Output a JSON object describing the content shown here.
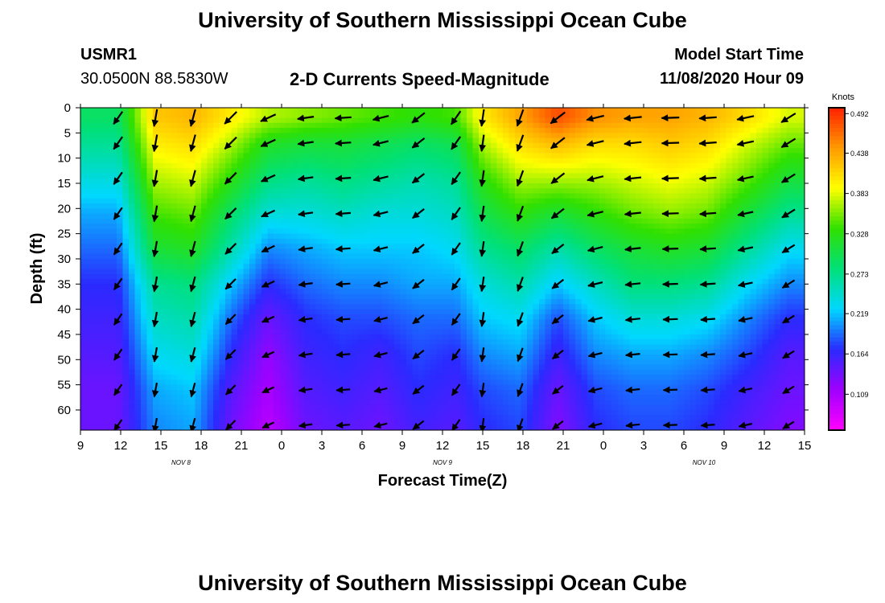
{
  "header": {
    "title_top": "University of Southern Mississippi Ocean Cube",
    "title_bottom": "University of Southern Mississippi Ocean Cube",
    "station_id": "USMR1",
    "station_location": "30.0500N 88.5830W",
    "plot_title": "2-D Currents Speed-Magnitude",
    "model_start_label": "Model Start Time",
    "model_start_value": "11/08/2020 Hour 09"
  },
  "chart_data": {
    "type": "heatmap",
    "title": "2-D Currents Speed-Magnitude",
    "xlabel": "Forecast Time(Z)",
    "ylabel": "Depth (ft)",
    "x_ticks": [
      "9",
      "12",
      "15",
      "18",
      "21",
      "0",
      "3",
      "6",
      "9",
      "12",
      "15",
      "18",
      "21",
      "0",
      "3",
      "6",
      "9",
      "12",
      "15"
    ],
    "x_range_hours": [
      0,
      54
    ],
    "date_labels": [
      {
        "text": "NOV  8",
        "hour": 7.5
      },
      {
        "text": "NOV  9",
        "hour": 27
      },
      {
        "text": "NOV  10",
        "hour": 46.5
      }
    ],
    "y_ticks": [
      0,
      5,
      10,
      15,
      20,
      25,
      30,
      35,
      40,
      45,
      50,
      55,
      60
    ],
    "ylim": [
      0,
      64
    ],
    "colorbar": {
      "unit": "Knots",
      "ticks": [
        "0.492",
        "0.438",
        "0.383",
        "0.328",
        "0.273",
        "0.219",
        "0.164",
        "0.109"
      ],
      "range": [
        0.06,
        0.5
      ],
      "colors": [
        "#ff00ff",
        "#a000ff",
        "#2a2aff",
        "#00d8ff",
        "#00e07a",
        "#30e000",
        "#ffff00",
        "#ff9a00",
        "#ff2000"
      ]
    },
    "vector_depths": [
      2,
      7,
      14,
      21,
      28,
      35,
      42,
      49,
      56,
      63
    ],
    "vector_columns": [
      {
        "hour": 2.8,
        "dir_deg": 215,
        "speed": [
          0.29,
          0.27,
          0.24,
          0.21,
          0.19,
          0.17,
          0.16,
          0.15,
          0.14,
          0.14
        ]
      },
      {
        "hour": 5.6,
        "dir_deg": 190,
        "speed": [
          0.42,
          0.4,
          0.37,
          0.34,
          0.31,
          0.27,
          0.25,
          0.23,
          0.21,
          0.2
        ]
      },
      {
        "hour": 8.4,
        "dir_deg": 195,
        "speed": [
          0.43,
          0.41,
          0.38,
          0.35,
          0.32,
          0.28,
          0.26,
          0.24,
          0.22,
          0.21
        ]
      },
      {
        "hour": 11.2,
        "dir_deg": 225,
        "speed": [
          0.4,
          0.37,
          0.33,
          0.29,
          0.26,
          0.22,
          0.19,
          0.17,
          0.15,
          0.14
        ]
      },
      {
        "hour": 14.0,
        "dir_deg": 245,
        "speed": [
          0.37,
          0.32,
          0.28,
          0.24,
          0.2,
          0.17,
          0.14,
          0.12,
          0.11,
          0.1
        ]
      },
      {
        "hour": 16.8,
        "dir_deg": 262,
        "speed": [
          0.36,
          0.31,
          0.27,
          0.24,
          0.21,
          0.19,
          0.17,
          0.16,
          0.15,
          0.14
        ]
      },
      {
        "hour": 19.6,
        "dir_deg": 266,
        "speed": [
          0.35,
          0.31,
          0.28,
          0.25,
          0.22,
          0.2,
          0.18,
          0.17,
          0.16,
          0.15
        ]
      },
      {
        "hour": 22.4,
        "dir_deg": 256,
        "speed": [
          0.34,
          0.3,
          0.27,
          0.24,
          0.22,
          0.2,
          0.18,
          0.16,
          0.15,
          0.14
        ]
      },
      {
        "hour": 25.2,
        "dir_deg": 232,
        "speed": [
          0.33,
          0.29,
          0.26,
          0.24,
          0.22,
          0.21,
          0.19,
          0.18,
          0.17,
          0.16
        ]
      },
      {
        "hour": 28.0,
        "dir_deg": 215,
        "speed": [
          0.34,
          0.3,
          0.27,
          0.25,
          0.23,
          0.21,
          0.19,
          0.17,
          0.16,
          0.15
        ]
      },
      {
        "hour": 30.0,
        "dir_deg": 188,
        "speed": [
          0.4,
          0.37,
          0.33,
          0.3,
          0.27,
          0.24,
          0.22,
          0.2,
          0.18,
          0.17
        ]
      },
      {
        "hour": 32.8,
        "dir_deg": 200,
        "speed": [
          0.44,
          0.41,
          0.37,
          0.33,
          0.29,
          0.26,
          0.23,
          0.21,
          0.19,
          0.18
        ]
      },
      {
        "hour": 35.6,
        "dir_deg": 232,
        "speed": [
          0.48,
          0.43,
          0.37,
          0.31,
          0.26,
          0.22,
          0.18,
          0.16,
          0.14,
          0.13
        ]
      },
      {
        "hour": 38.4,
        "dir_deg": 256,
        "speed": [
          0.45,
          0.41,
          0.37,
          0.33,
          0.29,
          0.25,
          0.22,
          0.2,
          0.18,
          0.17
        ]
      },
      {
        "hour": 41.2,
        "dir_deg": 264,
        "speed": [
          0.44,
          0.41,
          0.38,
          0.35,
          0.31,
          0.28,
          0.24,
          0.21,
          0.19,
          0.18
        ]
      },
      {
        "hour": 44.0,
        "dir_deg": 268,
        "speed": [
          0.44,
          0.42,
          0.39,
          0.36,
          0.32,
          0.28,
          0.24,
          0.21,
          0.19,
          0.18
        ]
      },
      {
        "hour": 46.8,
        "dir_deg": 266,
        "speed": [
          0.43,
          0.41,
          0.38,
          0.35,
          0.31,
          0.27,
          0.23,
          0.2,
          0.18,
          0.17
        ]
      },
      {
        "hour": 49.6,
        "dir_deg": 258,
        "speed": [
          0.41,
          0.38,
          0.35,
          0.31,
          0.27,
          0.23,
          0.2,
          0.18,
          0.16,
          0.15
        ]
      },
      {
        "hour": 52.8,
        "dir_deg": 238,
        "speed": [
          0.38,
          0.35,
          0.31,
          0.27,
          0.23,
          0.2,
          0.17,
          0.15,
          0.14,
          0.13
        ]
      }
    ]
  }
}
